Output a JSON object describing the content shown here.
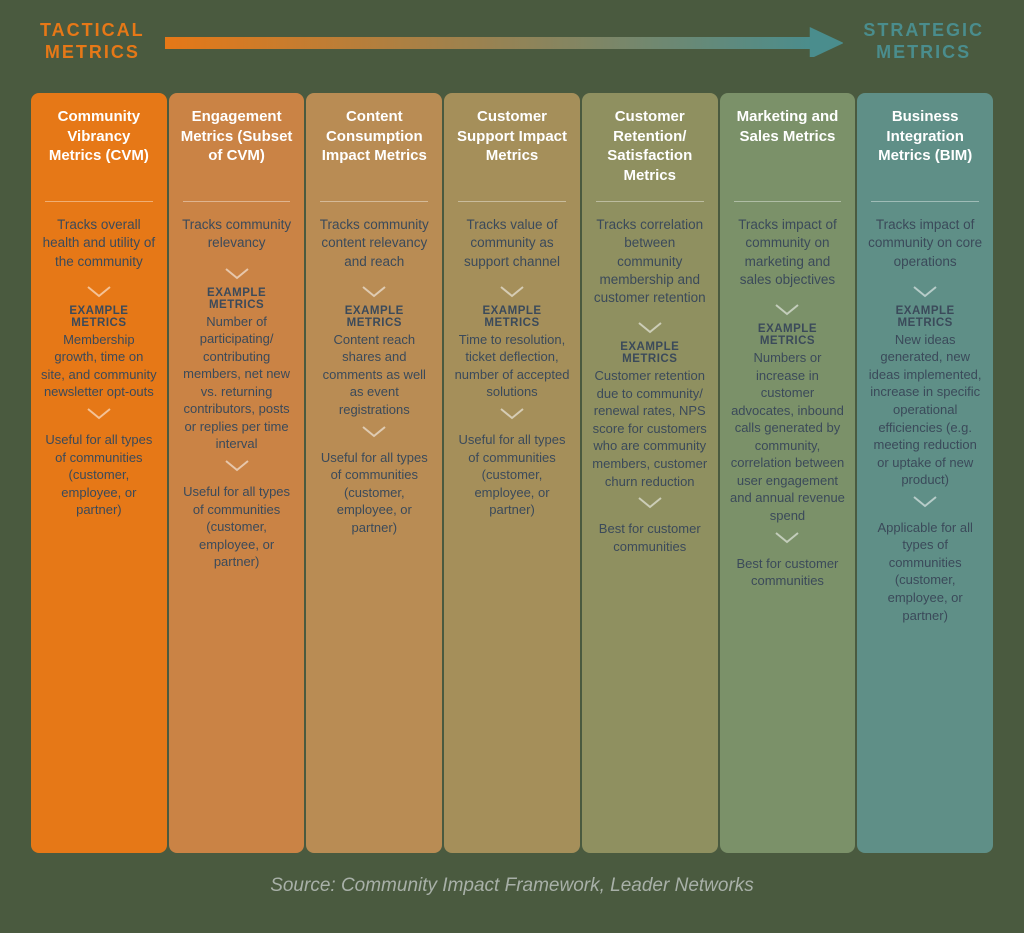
{
  "header": {
    "left_label": "TACTICAL\nMETRICS",
    "right_label": "STRATEGIC\nMETRICS",
    "arrow_gradient_start": "#e67817",
    "arrow_gradient_end": "#4a8d8d"
  },
  "example_label": "EXAMPLE METRICS",
  "source": "Source: Community Impact Framework, Leader Networks",
  "columns": [
    {
      "title": "Community Vibrancy Metrics (CVM)",
      "bg": "#e67817",
      "desc": "Tracks overall health and utility of the community",
      "example": "Membership growth, time on site, and community newsletter opt-outs",
      "useful": "Useful for all types of communities (customer, employee, or partner)"
    },
    {
      "title": "Engagement Metrics (Subset of CVM)",
      "bg": "#ca8345",
      "desc": "Tracks community relevancy",
      "example": "Number of participating/ contributing members, net new vs. returning contributors, posts or replies per time interval",
      "useful": "Useful for all types of communities (customer, employee, or partner)"
    },
    {
      "title": "Content Consumption Impact Metrics",
      "bg": "#b98c54",
      "desc": "Tracks community content relevancy and reach",
      "example": "Content reach shares and comments as well as event registrations",
      "useful": "Useful for all types of communities (customer, employee, or partner)"
    },
    {
      "title": "Customer Support Impact Metrics",
      "bg": "#a58f5a",
      "desc": "Tracks value of community as support channel",
      "example": "Time to resolution, ticket deflection, number of accepted solutions",
      "useful": "Useful for all types of communities (customer, employee, or partner)"
    },
    {
      "title": "Customer Retention/ Satisfaction Metrics",
      "bg": "#8f9060",
      "desc": "Tracks correlation between community membership and customer retention",
      "example": "Customer retention due to community/ renewal rates, NPS score for customers who are community members, customer churn reduction",
      "useful": "Best for customer communities"
    },
    {
      "title": "Marketing and Sales Metrics",
      "bg": "#7b9169",
      "desc": "Tracks impact of community on marketing and sales objectives",
      "example": "Numbers or increase in customer advocates, inbound calls generated by community, correlation between user engagement and annual revenue spend",
      "useful": "Best for customer communities"
    },
    {
      "title": "Business Integration Metrics (BIM)",
      "bg": "#5f8f87",
      "desc": "Tracks impact of community on core operations",
      "example": "New ideas generated, new ideas implemented, increase in specific operational efficiencies (e.g. meeting reduction or uptake of new product)",
      "useful": "Applicable for all types of communities (customer, employee, or partner)"
    }
  ]
}
